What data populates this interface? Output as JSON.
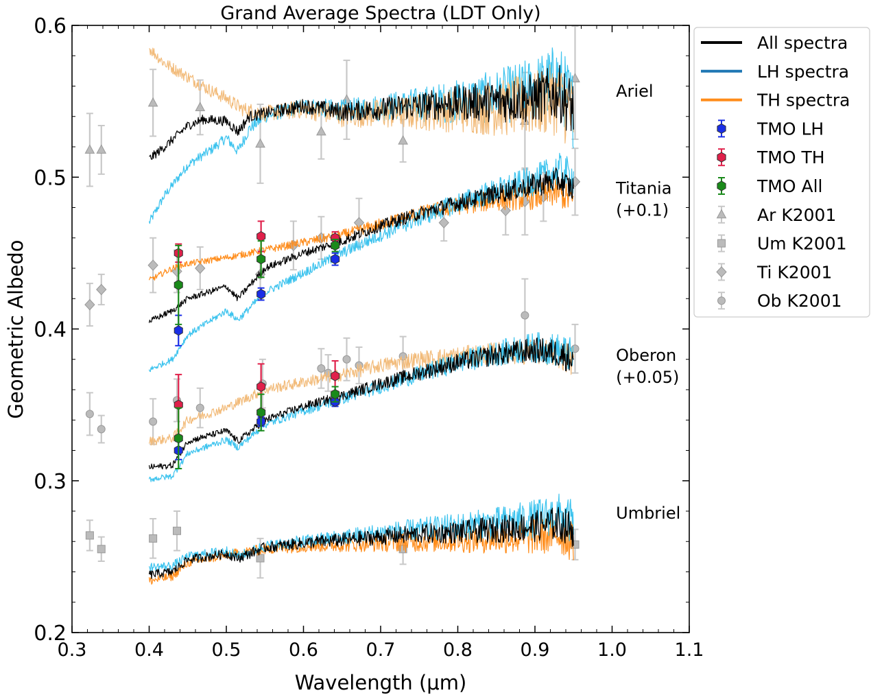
{
  "chart_data": {
    "type": "line",
    "title": "Grand Average Spectra (LDT Only)",
    "xlabel": "Wavelength (μm)",
    "ylabel": "Geometric Albedo",
    "xlim": [
      0.3,
      1.1
    ],
    "ylim": [
      0.2,
      0.6
    ],
    "xticks": [
      "0.3",
      "0.4",
      "0.5",
      "0.6",
      "0.7",
      "0.8",
      "0.9",
      "1.0",
      "1.1"
    ],
    "yticks": [
      "0.2",
      "0.3",
      "0.4",
      "0.5",
      "0.6"
    ],
    "legend_position": "outside-top-right",
    "colors": {
      "all": "#000000",
      "lh_legend": "#1f77b4",
      "lh_curve": "#3cc3ee",
      "th": "#ff8c1a",
      "th_light": "#f2bb7a",
      "tmo_lh": "#1a2ee6",
      "tmo_th": "#e0204a",
      "tmo_all": "#1a8a1a",
      "k2001": "#bbbbbb"
    },
    "legend": [
      {
        "label": "All spectra",
        "kind": "line",
        "color": "#000000"
      },
      {
        "label": "LH spectra",
        "kind": "line",
        "color": "#1f77b4"
      },
      {
        "label": "TH spectra",
        "kind": "line",
        "color": "#ff8c1a"
      },
      {
        "label": "TMO LH",
        "kind": "hexagon-err",
        "color": "#1a2ee6"
      },
      {
        "label": "TMO TH",
        "kind": "hexagon-err",
        "color": "#e0204a"
      },
      {
        "label": "TMO All",
        "kind": "hexagon-err",
        "color": "#1a8a1a"
      },
      {
        "label": "Ar K2001",
        "kind": "triangle-err",
        "color": "#bbbbbb"
      },
      {
        "label": "Um K2001",
        "kind": "square-err",
        "color": "#bbbbbb"
      },
      {
        "label": "Ti K2001",
        "kind": "diamond-err",
        "color": "#bbbbbb"
      },
      {
        "label": "Ob K2001",
        "kind": "circle-err",
        "color": "#bbbbbb"
      }
    ],
    "annotations": [
      {
        "lines": [
          "Ariel"
        ],
        "x": 1.005,
        "y": 0.553
      },
      {
        "lines": [
          "Titania",
          "(+0.1)"
        ],
        "x": 1.005,
        "y": 0.489
      },
      {
        "lines": [
          "Oberon",
          "(+0.05)"
        ],
        "x": 1.005,
        "y": 0.379
      },
      {
        "lines": [
          "Umbriel"
        ],
        "x": 1.005,
        "y": 0.275
      }
    ],
    "spectra": {
      "Ariel": {
        "all": {
          "x": [
            0.4,
            0.42,
            0.45,
            0.47,
            0.5,
            0.515,
            0.53,
            0.55,
            0.6,
            0.65,
            0.7,
            0.75,
            0.8,
            0.85,
            0.9,
            0.93,
            0.95
          ],
          "y": [
            0.512,
            0.52,
            0.534,
            0.538,
            0.537,
            0.53,
            0.54,
            0.542,
            0.547,
            0.543,
            0.545,
            0.547,
            0.549,
            0.55,
            0.552,
            0.556,
            0.545
          ],
          "noise": [
            0.003,
            0.02
          ]
        },
        "lh": {
          "x": [
            0.4,
            0.42,
            0.45,
            0.48,
            0.5,
            0.515,
            0.53,
            0.55,
            0.6,
            0.65,
            0.7,
            0.75,
            0.8,
            0.85,
            0.9,
            0.93,
            0.95
          ],
          "y": [
            0.47,
            0.488,
            0.508,
            0.518,
            0.526,
            0.517,
            0.532,
            0.54,
            0.547,
            0.544,
            0.546,
            0.548,
            0.55,
            0.553,
            0.558,
            0.565,
            0.545
          ],
          "noise": [
            0.003,
            0.026
          ]
        },
        "th": {
          "x": [
            0.4,
            0.42,
            0.45,
            0.48,
            0.5,
            0.52,
            0.55,
            0.6,
            0.65,
            0.7,
            0.75,
            0.8,
            0.85,
            0.9,
            0.93,
            0.95
          ],
          "y": [
            0.585,
            0.575,
            0.566,
            0.557,
            0.552,
            0.545,
            0.542,
            0.545,
            0.541,
            0.542,
            0.543,
            0.544,
            0.545,
            0.548,
            0.552,
            0.54
          ],
          "noise": [
            0.004,
            0.026
          ]
        }
      },
      "Titania": {
        "all": {
          "x": [
            0.4,
            0.43,
            0.45,
            0.5,
            0.515,
            0.55,
            0.6,
            0.65,
            0.7,
            0.75,
            0.8,
            0.85,
            0.9,
            0.93,
            0.95
          ],
          "y": [
            0.405,
            0.412,
            0.42,
            0.428,
            0.42,
            0.44,
            0.45,
            0.458,
            0.468,
            0.476,
            0.483,
            0.489,
            0.495,
            0.498,
            0.492
          ],
          "noise": [
            0.002,
            0.009
          ]
        },
        "lh": {
          "x": [
            0.4,
            0.43,
            0.45,
            0.5,
            0.515,
            0.55,
            0.6,
            0.65,
            0.7,
            0.75,
            0.8,
            0.85,
            0.9,
            0.93,
            0.95
          ],
          "y": [
            0.373,
            0.38,
            0.396,
            0.412,
            0.406,
            0.424,
            0.437,
            0.45,
            0.462,
            0.473,
            0.483,
            0.491,
            0.498,
            0.505,
            0.5
          ],
          "noise": [
            0.002,
            0.012
          ]
        },
        "th": {
          "x": [
            0.4,
            0.43,
            0.45,
            0.5,
            0.55,
            0.6,
            0.65,
            0.7,
            0.75,
            0.8,
            0.85,
            0.9,
            0.93,
            0.95
          ],
          "y": [
            0.432,
            0.44,
            0.443,
            0.447,
            0.452,
            0.457,
            0.462,
            0.469,
            0.476,
            0.481,
            0.485,
            0.487,
            0.49,
            0.484
          ],
          "noise": [
            0.002,
            0.01
          ]
        }
      },
      "Oberon": {
        "all": {
          "x": [
            0.4,
            0.43,
            0.45,
            0.5,
            0.515,
            0.55,
            0.6,
            0.65,
            0.7,
            0.75,
            0.8,
            0.85,
            0.9,
            0.93,
            0.95
          ],
          "y": [
            0.309,
            0.31,
            0.326,
            0.333,
            0.326,
            0.34,
            0.349,
            0.356,
            0.364,
            0.371,
            0.378,
            0.383,
            0.386,
            0.384,
            0.38
          ],
          "noise": [
            0.002,
            0.01
          ]
        },
        "lh": {
          "x": [
            0.4,
            0.43,
            0.45,
            0.5,
            0.515,
            0.55,
            0.6,
            0.65,
            0.7,
            0.75,
            0.8,
            0.85,
            0.9,
            0.93,
            0.95
          ],
          "y": [
            0.301,
            0.303,
            0.318,
            0.327,
            0.322,
            0.337,
            0.346,
            0.354,
            0.362,
            0.37,
            0.378,
            0.384,
            0.388,
            0.386,
            0.382
          ],
          "noise": [
            0.002,
            0.012
          ]
        },
        "th": {
          "x": [
            0.4,
            0.43,
            0.45,
            0.5,
            0.55,
            0.6,
            0.65,
            0.7,
            0.75,
            0.8,
            0.85,
            0.9,
            0.93,
            0.95
          ],
          "y": [
            0.326,
            0.328,
            0.34,
            0.348,
            0.36,
            0.365,
            0.37,
            0.376,
            0.38,
            0.382,
            0.384,
            0.385,
            0.384,
            0.378
          ],
          "noise": [
            0.003,
            0.01
          ]
        }
      },
      "Umbriel": {
        "all": {
          "x": [
            0.4,
            0.43,
            0.45,
            0.5,
            0.515,
            0.55,
            0.6,
            0.65,
            0.7,
            0.75,
            0.8,
            0.85,
            0.9,
            0.93,
            0.95
          ],
          "y": [
            0.238,
            0.24,
            0.248,
            0.252,
            0.249,
            0.256,
            0.259,
            0.261,
            0.263,
            0.265,
            0.266,
            0.268,
            0.27,
            0.272,
            0.268
          ],
          "noise": [
            0.003,
            0.012
          ]
        },
        "lh": {
          "x": [
            0.4,
            0.43,
            0.45,
            0.5,
            0.515,
            0.55,
            0.6,
            0.65,
            0.7,
            0.75,
            0.8,
            0.85,
            0.9,
            0.93,
            0.95
          ],
          "y": [
            0.243,
            0.244,
            0.25,
            0.254,
            0.25,
            0.257,
            0.26,
            0.263,
            0.266,
            0.268,
            0.27,
            0.272,
            0.275,
            0.278,
            0.272
          ],
          "noise": [
            0.003,
            0.015
          ]
        },
        "th": {
          "x": [
            0.4,
            0.43,
            0.45,
            0.5,
            0.55,
            0.6,
            0.65,
            0.7,
            0.75,
            0.8,
            0.85,
            0.9,
            0.93,
            0.95
          ],
          "y": [
            0.234,
            0.237,
            0.246,
            0.251,
            0.255,
            0.257,
            0.258,
            0.259,
            0.26,
            0.261,
            0.262,
            0.263,
            0.265,
            0.26
          ],
          "noise": [
            0.003,
            0.014
          ]
        }
      }
    },
    "tmo": [
      {
        "series": "TMO LH",
        "x": [
          0.438,
          0.545,
          0.641
        ],
        "y": [
          0.399,
          0.423,
          0.446
        ],
        "err": [
          0.01,
          0.004,
          0.004
        ]
      },
      {
        "series": "TMO TH",
        "x": [
          0.438,
          0.545,
          0.641
        ],
        "y": [
          0.45,
          0.461,
          0.46
        ],
        "err": [
          0.006,
          0.01,
          0.004
        ]
      },
      {
        "series": "TMO All",
        "x": [
          0.438,
          0.545,
          0.641
        ],
        "y": [
          0.429,
          0.446,
          0.455
        ],
        "err": [
          0.026,
          0.012,
          0.004
        ]
      },
      {
        "series": "TMO LH",
        "x": [
          0.438,
          0.545,
          0.641
        ],
        "y": [
          0.32,
          0.339,
          0.352
        ],
        "err": [
          0.006,
          0.003,
          0.003
        ]
      },
      {
        "series": "TMO TH",
        "x": [
          0.438,
          0.545,
          0.641
        ],
        "y": [
          0.35,
          0.362,
          0.369
        ],
        "err": [
          0.02,
          0.015,
          0.01
        ]
      },
      {
        "series": "TMO All",
        "x": [
          0.438,
          0.545,
          0.641
        ],
        "y": [
          0.328,
          0.345,
          0.357
        ],
        "err": [
          0.02,
          0.012,
          0.005
        ]
      }
    ],
    "k2001": {
      "Ar": {
        "marker": "triangle",
        "x": [
          0.323,
          0.338,
          0.405,
          0.466,
          0.544,
          0.623,
          0.656,
          0.729,
          0.887,
          0.952
        ],
        "y": [
          0.518,
          0.518,
          0.549,
          0.546,
          0.522,
          0.53,
          0.551,
          0.524,
          0.537,
          0.565
        ],
        "err": [
          0.024,
          0.016,
          0.022,
          0.018,
          0.026,
          0.018,
          0.026,
          0.014,
          0.032,
          0.04
        ]
      },
      "Um": {
        "marker": "square",
        "x": [
          0.323,
          0.338,
          0.405,
          0.436,
          0.544,
          0.729,
          0.952
        ],
        "y": [
          0.264,
          0.255,
          0.262,
          0.267,
          0.249,
          0.255,
          0.258
        ],
        "err": [
          0.01,
          0.008,
          0.013,
          0.013,
          0.013,
          0.01,
          0.01
        ]
      },
      "Ti": {
        "marker": "diamond",
        "x": [
          0.323,
          0.338,
          0.405,
          0.436,
          0.466,
          0.544,
          0.587,
          0.623,
          0.672,
          0.782,
          0.862,
          0.887,
          0.911,
          0.952
        ],
        "y": [
          0.416,
          0.426,
          0.442,
          0.438,
          0.44,
          0.436,
          0.455,
          0.46,
          0.47,
          0.47,
          0.478,
          0.484,
          0.487,
          0.497
        ],
        "err": [
          0.014,
          0.01,
          0.018,
          0.014,
          0.014,
          0.016,
          0.016,
          0.014,
          0.016,
          0.012,
          0.016,
          0.022,
          0.016,
          0.022
        ]
      },
      "Ob": {
        "marker": "circle",
        "x": [
          0.323,
          0.338,
          0.405,
          0.436,
          0.466,
          0.547,
          0.623,
          0.632,
          0.656,
          0.672,
          0.729,
          0.887,
          0.952
        ],
        "y": [
          0.344,
          0.334,
          0.339,
          0.353,
          0.348,
          0.364,
          0.374,
          0.371,
          0.38,
          0.376,
          0.382,
          0.409,
          0.387
        ],
        "err": [
          0.014,
          0.009,
          0.015,
          0.014,
          0.013,
          0.016,
          0.013,
          0.012,
          0.014,
          0.012,
          0.013,
          0.024,
          0.016
        ]
      }
    }
  }
}
